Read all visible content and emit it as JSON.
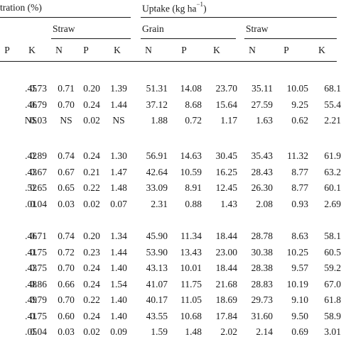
{
  "header": {
    "concentration_label": "tration (%)",
    "uptake_label": "Uptake (kg ha",
    "uptake_unit_sup": "−1",
    "uptake_unit_close": ")",
    "straw_label_conc": "Straw",
    "grain_label": "Grain",
    "straw_label_uptake": "Straw"
  },
  "columns": [
    "P",
    "K",
    "N",
    "P",
    "K",
    "N",
    "P",
    "K",
    "N",
    "P",
    "K"
  ],
  "groups": [
    {
      "rows": [
        [
          ".45",
          "0.73",
          "0.71",
          "0.20",
          "1.39",
          "51.31",
          "14.08",
          "23.70",
          "35.11",
          "10.05",
          "68.1"
        ],
        [
          ".46",
          "0.79",
          "0.70",
          "0.24",
          "1.44",
          "37.12",
          "8.68",
          "15.64",
          "27.59",
          "9.25",
          "55.4"
        ],
        [
          "NS",
          "0.03",
          "NS",
          "0.02",
          "NS",
          "1.88",
          "0.72",
          "1.17",
          "1.63",
          "0.62",
          "2.21"
        ]
      ]
    },
    {
      "rows": [
        [
          ".42",
          "0.89",
          "0.74",
          "0.24",
          "1.30",
          "56.91",
          "14.63",
          "30.45",
          "35.43",
          "11.32",
          "61.9"
        ],
        [
          ".43",
          "0.67",
          "0.67",
          "0.21",
          "1.47",
          "42.64",
          "10.59",
          "16.25",
          "28.43",
          "8.77",
          "63.2"
        ],
        [
          ".52",
          "0.65",
          "0.65",
          "0.22",
          "1.48",
          "33.09",
          "8.91",
          "12.45",
          "26.30",
          "8.77",
          "60.1"
        ],
        [
          ".01",
          "0.04",
          "0.03",
          "0.02",
          "0.07",
          "2.31",
          "0.88",
          "1.43",
          "2.08",
          "0.93",
          "2.69"
        ]
      ]
    },
    {
      "rows": [
        [
          ".46",
          "0.71",
          "0.74",
          "0.20",
          "1.34",
          "45.90",
          "11.34",
          "18.44",
          "28.78",
          "8.63",
          "58.1"
        ],
        [
          ".41",
          "0.75",
          "0.72",
          "0.23",
          "1.44",
          "53.90",
          "13.43",
          "23.00",
          "30.38",
          "10.25",
          "60.5"
        ],
        [
          ".43",
          "0.75",
          "0.70",
          "0.24",
          "1.40",
          "43.13",
          "10.01",
          "18.44",
          "28.38",
          "9.57",
          "59.2"
        ],
        [
          ".48",
          "0.86",
          "0.66",
          "0.24",
          "1.54",
          "41.07",
          "11.75",
          "21.68",
          "28.83",
          "10.19",
          "67.0"
        ],
        [
          ".49",
          "0.79",
          "0.70",
          "0.22",
          "1.40",
          "40.17",
          "11.05",
          "18.69",
          "29.73",
          "9.10",
          "61.8"
        ],
        [
          ".41",
          "0.75",
          "0.60",
          "0.24",
          "1.40",
          "43.55",
          "10.68",
          "17.84",
          "31.60",
          "9.50",
          "58.9"
        ],
        [
          ".05",
          "0.04",
          "0.03",
          "0.02",
          "0.09",
          "1.59",
          "1.48",
          "2.02",
          "2.14",
          "0.69",
          "3.01"
        ]
      ]
    }
  ]
}
